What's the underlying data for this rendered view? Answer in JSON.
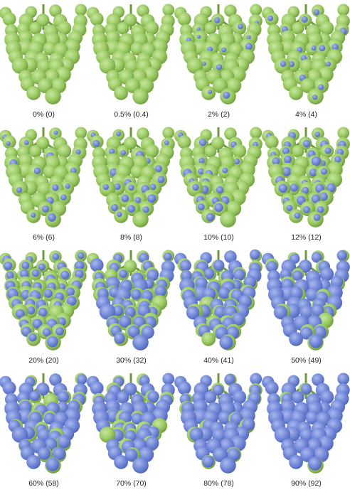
{
  "colors": {
    "healthy_light": "#c9e6a0",
    "healthy": "#9ccc65",
    "healthy_dark": "#6f9a3c",
    "infected_light": "#aab8ee",
    "infected": "#7389d8",
    "infected_dark": "#4e63b8",
    "text": "#222222",
    "background": "#ffffff"
  },
  "panels": [
    {
      "label": "0% (0)",
      "severity_percent": 0
    },
    {
      "label": "0.5% (0.4)",
      "severity_percent": 0.5
    },
    {
      "label": "2% (2)",
      "severity_percent": 2
    },
    {
      "label": "4% (4)",
      "severity_percent": 4
    },
    {
      "label": "6% (6)",
      "severity_percent": 6
    },
    {
      "label": "8% (8)",
      "severity_percent": 8
    },
    {
      "label": "10% (10)",
      "severity_percent": 10
    },
    {
      "label": "12% (12)",
      "severity_percent": 12
    },
    {
      "label": "20% (20)",
      "severity_percent": 20
    },
    {
      "label": "30% (32)",
      "severity_percent": 30
    },
    {
      "label": "40% (41)",
      "severity_percent": 40
    },
    {
      "label": "50% (49)",
      "severity_percent": 50
    },
    {
      "label": "60% (58)",
      "severity_percent": 60
    },
    {
      "label": "70% (70)",
      "severity_percent": 70
    },
    {
      "label": "80% (78)",
      "severity_percent": 80
    },
    {
      "label": "90% (92)",
      "severity_percent": 90
    }
  ]
}
